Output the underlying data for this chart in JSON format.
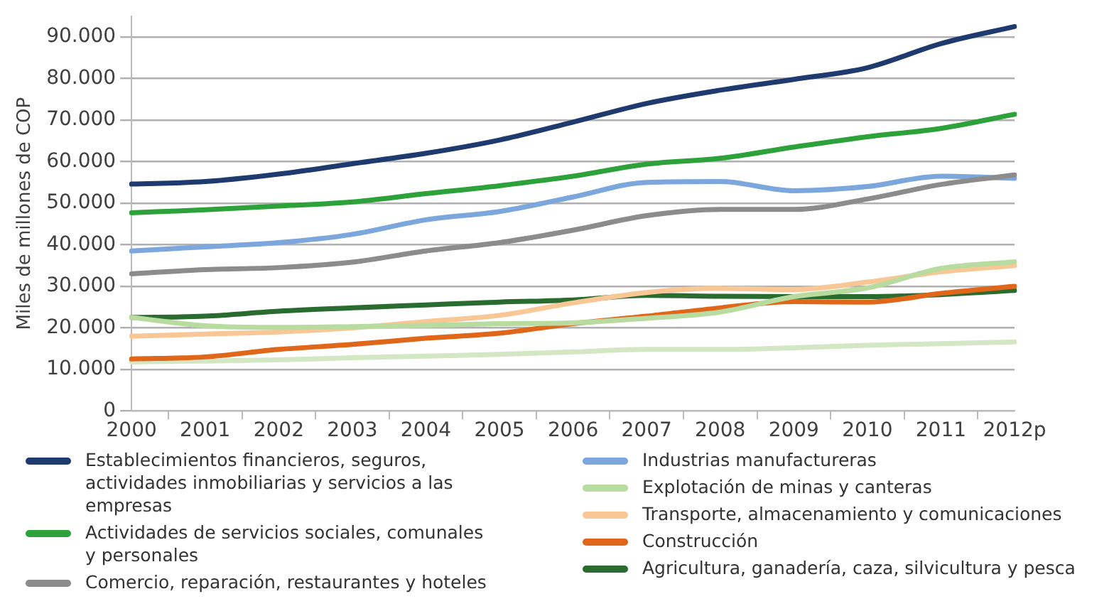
{
  "chart_data": {
    "type": "line",
    "ylabel": "Miles de millones de COP",
    "categories": [
      "2000",
      "2001",
      "2002",
      "2003",
      "2004",
      "2005",
      "2006",
      "2007",
      "2008",
      "2009",
      "2010",
      "2011",
      "2012p"
    ],
    "ylim": [
      0,
      95000
    ],
    "yticks": [
      {
        "value": 0,
        "label": "0"
      },
      {
        "value": 10000,
        "label": "10.000"
      },
      {
        "value": 20000,
        "label": "20.000"
      },
      {
        "value": 30000,
        "label": "30.000"
      },
      {
        "value": 40000,
        "label": "40.000"
      },
      {
        "value": 50000,
        "label": "50.000"
      },
      {
        "value": 60000,
        "label": "60.000"
      },
      {
        "value": 70000,
        "label": "70.000"
      },
      {
        "value": 80000,
        "label": "80.000"
      },
      {
        "value": 90000,
        "label": "90.000"
      }
    ],
    "grid": "y",
    "legend": "bottom",
    "marker": "none",
    "line_style": "solid",
    "series": [
      {
        "name": "Establecimientos financieros, seguros, actividades inmobiliarias y servicios a las empresas",
        "color": "#1f3a6e",
        "values": [
          54600,
          55200,
          57000,
          59500,
          62000,
          65200,
          69500,
          74000,
          77200,
          79800,
          82600,
          88400,
          92500
        ]
      },
      {
        "name": "Actividades de servicios sociales, comunales y personales",
        "color": "#2ea23a",
        "values": [
          47700,
          48400,
          49300,
          50300,
          52300,
          54200,
          56500,
          59400,
          60800,
          63500,
          66000,
          68000,
          71400
        ]
      },
      {
        "name": "Comercio, reparación, restaurantes y hoteles",
        "color": "#8c8c8c",
        "values": [
          33000,
          34000,
          34500,
          35800,
          38500,
          40500,
          43500,
          47000,
          48500,
          48500,
          51000,
          54500,
          56800
        ]
      },
      {
        "name": "Industrias manufactureras",
        "color": "#7ba7dc",
        "values": [
          38500,
          39500,
          40500,
          42500,
          46000,
          48000,
          51500,
          55000,
          55200,
          53000,
          54000,
          56500,
          56000
        ]
      },
      {
        "name": "Explotación de minas y canteras",
        "color": "#b8dba0",
        "values": [
          22500,
          20500,
          20100,
          20300,
          20600,
          21000,
          21200,
          22300,
          23800,
          27500,
          29600,
          34300,
          35900
        ]
      },
      {
        "name": "Transporte, almacenamiento y comunicaciones",
        "color": "#f9c796",
        "values": [
          18000,
          18500,
          19000,
          20000,
          21500,
          23000,
          26000,
          28500,
          29500,
          29200,
          31000,
          33500,
          35000
        ]
      },
      {
        "name": "Construcción",
        "color": "#e0661a",
        "values": [
          12500,
          13000,
          14800,
          16000,
          17500,
          18700,
          21000,
          22800,
          24800,
          26300,
          26200,
          28300,
          30000
        ]
      },
      {
        "name": "Agricultura, ganadería, caza, silvicultura y pesca",
        "color": "#2a6b30",
        "values": [
          22500,
          22800,
          24000,
          24800,
          25500,
          26200,
          26700,
          27800,
          27600,
          27500,
          27500,
          28000,
          29000
        ]
      },
      {
        "color": "#d4e7c5",
        "values": [
          11800,
          12000,
          12300,
          12800,
          13200,
          13600,
          14200,
          14800,
          14800,
          15200,
          15800,
          16200,
          16600
        ]
      }
    ]
  }
}
